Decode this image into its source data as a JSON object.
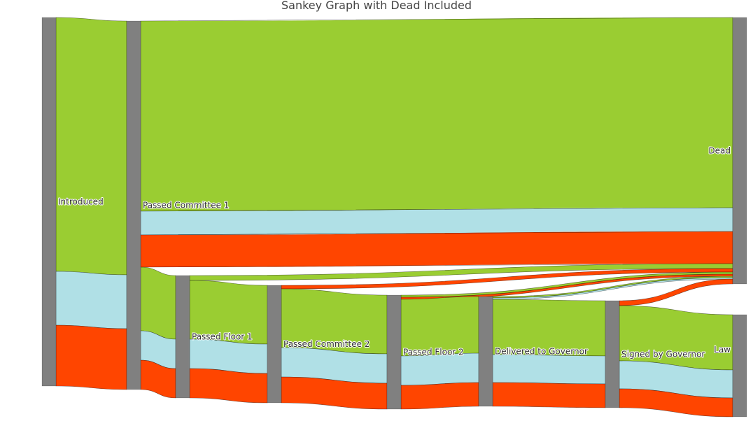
{
  "chart_data": {
    "type": "sankey",
    "title": "Sankey Graph with Dead Included",
    "node_color": "#808080",
    "party_colors": {
      "green": "#9acd32",
      "lightblue": "#b0e0e6",
      "red": "#ff4500"
    },
    "nodes": [
      {
        "id": "introduced",
        "label": "Introduced"
      },
      {
        "id": "passed_committee_1",
        "label": "Passed Committee 1"
      },
      {
        "id": "passed_floor_1",
        "label": "Passed Floor 1"
      },
      {
        "id": "passed_committee_2",
        "label": "Passed Committee 2"
      },
      {
        "id": "passed_floor_2",
        "label": "Passed Floor 2"
      },
      {
        "id": "delivered_to_governor",
        "label": "Delivered to Governor"
      },
      {
        "id": "signed_by_governor",
        "label": "Signed by Governor"
      },
      {
        "id": "dead",
        "label": "Dead"
      },
      {
        "id": "law",
        "label": "Law"
      }
    ],
    "links": [
      {
        "source": "introduced",
        "target": "passed_committee_1",
        "color": "green",
        "value": 363
      },
      {
        "source": "introduced",
        "target": "passed_committee_1",
        "color": "lightblue",
        "value": 77
      },
      {
        "source": "introduced",
        "target": "passed_committee_1",
        "color": "red",
        "value": 87
      },
      {
        "source": "passed_committee_1",
        "target": "dead",
        "color": "green",
        "value": 272
      },
      {
        "source": "passed_committee_1",
        "target": "dead",
        "color": "lightblue",
        "value": 34
      },
      {
        "source": "passed_committee_1",
        "target": "dead",
        "color": "red",
        "value": 46
      },
      {
        "source": "passed_committee_1",
        "target": "passed_floor_1",
        "color": "green",
        "value": 91
      },
      {
        "source": "passed_committee_1",
        "target": "passed_floor_1",
        "color": "lightblue",
        "value": 42
      },
      {
        "source": "passed_committee_1",
        "target": "passed_floor_1",
        "color": "red",
        "value": 42
      },
      {
        "source": "passed_floor_1",
        "target": "dead",
        "color": "green",
        "value": 7
      },
      {
        "source": "passed_floor_1",
        "target": "passed_committee_2",
        "color": "green",
        "value": 84
      },
      {
        "source": "passed_floor_1",
        "target": "passed_committee_2",
        "color": "lightblue",
        "value": 42
      },
      {
        "source": "passed_floor_1",
        "target": "passed_committee_2",
        "color": "red",
        "value": 42
      },
      {
        "source": "passed_committee_2",
        "target": "dead",
        "color": "red",
        "value": 5
      },
      {
        "source": "passed_committee_2",
        "target": "passed_floor_2",
        "color": "green",
        "value": 84
      },
      {
        "source": "passed_committee_2",
        "target": "passed_floor_2",
        "color": "lightblue",
        "value": 42
      },
      {
        "source": "passed_committee_2",
        "target": "passed_floor_2",
        "color": "red",
        "value": 37
      },
      {
        "source": "passed_floor_2",
        "target": "dead",
        "color": "green",
        "value": 3
      },
      {
        "source": "passed_floor_2",
        "target": "dead",
        "color": "red",
        "value": 3
      },
      {
        "source": "passed_floor_2",
        "target": "delivered_to_governor",
        "color": "green",
        "value": 81
      },
      {
        "source": "passed_floor_2",
        "target": "delivered_to_governor",
        "color": "lightblue",
        "value": 42
      },
      {
        "source": "passed_floor_2",
        "target": "delivered_to_governor",
        "color": "red",
        "value": 34
      },
      {
        "source": "delivered_to_governor",
        "target": "dead",
        "color": "green",
        "value": 2
      },
      {
        "source": "delivered_to_governor",
        "target": "dead",
        "color": "lightblue",
        "value": 2
      },
      {
        "source": "delivered_to_governor",
        "target": "passed_committee_2",
        "color": "green",
        "value": 0
      },
      {
        "source": "delivered_to_governor",
        "target": "signed_by_governor",
        "color": "green",
        "value": 79
      },
      {
        "source": "delivered_to_governor",
        "target": "signed_by_governor",
        "color": "lightblue",
        "value": 40
      },
      {
        "source": "delivered_to_governor",
        "target": "signed_by_governor",
        "color": "red",
        "value": 34
      },
      {
        "source": "signed_by_governor",
        "target": "dead",
        "color": "red",
        "value": 7
      },
      {
        "source": "signed_by_governor",
        "target": "law",
        "color": "green",
        "value": 79
      },
      {
        "source": "signed_by_governor",
        "target": "law",
        "color": "lightblue",
        "value": 40
      },
      {
        "source": "signed_by_governor",
        "target": "law",
        "color": "red",
        "value": 27
      }
    ]
  }
}
